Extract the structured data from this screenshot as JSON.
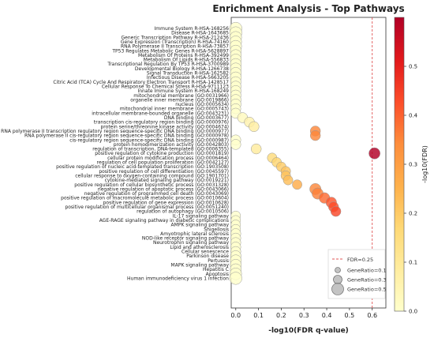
{
  "chart_data": {
    "type": "scatter",
    "title": "Enrichment Analysis - Top Pathways",
    "xlabel": "-log10(FDR q-value)",
    "xlim": [
      -0.02,
      0.66
    ],
    "xticks": [
      "0.0",
      "0.1",
      "0.2",
      "0.3",
      "0.4",
      "0.5",
      "0.6"
    ],
    "reference_line": {
      "x": 0.6,
      "label": "FDR=0.25",
      "color": "#e05555"
    },
    "colorbar": {
      "label": "-log10(FDR)",
      "range": [
        0,
        0.6
      ],
      "ticks": [
        "0.0",
        "0.1",
        "0.2",
        "0.3",
        "0.4",
        "0.5"
      ],
      "colors": [
        "#ffffcc",
        "#ffeda0",
        "#fed976",
        "#feb24c",
        "#fd8d3c",
        "#fc4e2a",
        "#e31a1c",
        "#b10026"
      ]
    },
    "size_legend": [
      {
        "label": "GeneRatio=0.1",
        "value": 0.1
      },
      {
        "label": "GeneRatio=0.3",
        "value": 0.3
      },
      {
        "label": "GeneRatio=0.5",
        "value": 0.5
      }
    ],
    "points": [
      {
        "term": "Immune System R-HSA-168256",
        "x": 0.0,
        "size": 0.55
      },
      {
        "term": "Disease R-HSA-1643685",
        "x": 0.0,
        "size": 0.55
      },
      {
        "term": "Generic Transcription Pathway R-HSA-212436",
        "x": 0.0,
        "size": 0.5
      },
      {
        "term": "Gene Expression (Transcription) R-HSA-74160",
        "x": 0.0,
        "size": 0.5
      },
      {
        "term": "RNA Polymerase II Transcription R-HSA-73857",
        "x": 0.0,
        "size": 0.5
      },
      {
        "term": "TP53 Regulates Metabolic Genes R-HSA-5628897",
        "x": 0.0,
        "size": 0.45
      },
      {
        "term": "Metabolism Of Proteins R-HSA-392499",
        "x": 0.0,
        "size": 0.45
      },
      {
        "term": "Metabolism Of Lipids R-HSA-556833",
        "x": 0.0,
        "size": 0.45
      },
      {
        "term": "Transcriptional Regulation By TP53 R-HSA-3700989",
        "x": 0.0,
        "size": 0.45
      },
      {
        "term": "Developmental Biology R-HSA-1266738",
        "x": 0.0,
        "size": 0.45
      },
      {
        "term": "Signal Transduction R-HSA-162582",
        "x": 0.0,
        "size": 0.45
      },
      {
        "term": "Infectious Disease R-HSA-5663205",
        "x": 0.0,
        "size": 0.45
      },
      {
        "term": "Citric Acid (TCA) Cycle And Respiratory Electron Transport R-HSA-1428517",
        "x": 0.0,
        "size": 0.4
      },
      {
        "term": "Cellular Response To Chemical Stress R-HSA-9711123",
        "x": 0.0,
        "size": 0.4
      },
      {
        "term": "Innate Immune System R-HSA-168249",
        "x": 0.0,
        "size": 0.4
      },
      {
        "term": "mitochondrial membrane (GO:0031966)",
        "x": 0.0,
        "size": 0.4
      },
      {
        "term": "organelle inner membrane (GO:0019866)",
        "x": 0.0,
        "size": 0.4
      },
      {
        "term": "nucleus (GO:0005634)",
        "x": 0.0,
        "size": 0.4
      },
      {
        "term": "mitochondrial inner membrane (GO:0005743)",
        "x": 0.0,
        "size": 0.35
      },
      {
        "term": "intracellular membrane-bounded organelle (GO:0043231)",
        "x": 0.0,
        "size": 0.35
      },
      {
        "term": "DNA binding (GO:0003677)",
        "x": 0.03,
        "size": 0.35
      },
      {
        "term": "transcription cis-regulatory region binding (GO:0000976)",
        "x": 0.06,
        "size": 0.35
      },
      {
        "term": "protein serine/threonine kinase activity (GO:0004674)",
        "x": 0.08,
        "size": 0.35
      },
      {
        "term": "RNA polymerase II transcription regulatory region sequence-specific DNA binding (GO:0000977)",
        "x": 0.35,
        "size": 0.35
      },
      {
        "term": "RNA polymerase II cis-regulatory region sequence-specific DNA binding (GO:0000978)",
        "x": 0.35,
        "size": 0.35
      },
      {
        "term": "cis-regulatory region sequence-specific DNA binding (GO:0000987)",
        "x": 0.0,
        "size": 0.35
      },
      {
        "term": "protein homodimerization activity (GO:0042803)",
        "x": 0.0,
        "size": 0.35
      },
      {
        "term": "regulation of transcription, DNA-templated (GO:0006355)",
        "x": 0.09,
        "size": 0.35
      },
      {
        "term": "positive regulation of cytokine production (GO:0001819)",
        "x": 0.61,
        "size": 0.45
      },
      {
        "term": "cellular protein modification process (GO:0006464)",
        "x": 0.16,
        "size": 0.3
      },
      {
        "term": "regulation of cell population proliferation (GO:0042127)",
        "x": 0.18,
        "size": 0.3
      },
      {
        "term": "positive regulation of nucleic acid-templated transcription (GO:1903508)",
        "x": 0.2,
        "size": 0.3
      },
      {
        "term": "positive regulation of cell differentiation (GO:0045597)",
        "x": 0.22,
        "size": 0.3
      },
      {
        "term": "cellular response to oxygen-containing compound (GO:1901701)",
        "x": 0.22,
        "size": 0.3
      },
      {
        "term": "cytokine-mediated signaling pathway (GO:0019221)",
        "x": 0.23,
        "size": 0.3
      },
      {
        "term": "positive regulation of cellular biosynthetic process (GO:0031328)",
        "x": 0.27,
        "size": 0.3
      },
      {
        "term": "negative regulation of apoptotic process (GO:0043066)",
        "x": 0.35,
        "size": 0.45
      },
      {
        "term": "negative regulation of programmed cell death (GO:0043069)",
        "x": 0.36,
        "size": 0.45
      },
      {
        "term": "positive regulation of macromolecule metabolic process (GO:0010604)",
        "x": 0.39,
        "size": 0.4
      },
      {
        "term": "positive regulation of gene expression (GO:0010628)",
        "x": 0.42,
        "size": 0.4
      },
      {
        "term": "positive regulation of multicellular organismal process (GO:0051240)",
        "x": 0.43,
        "size": 0.35
      },
      {
        "term": "regulation of autophagy (GO:0010506)",
        "x": 0.44,
        "size": 0.35
      },
      {
        "term": "IL-17 signaling pathway",
        "x": 0.0,
        "size": 0.3
      },
      {
        "term": "AGE-RAGE signaling pathway in diabetic complications",
        "x": 0.0,
        "size": 0.3
      },
      {
        "term": "AMPK signaling pathway",
        "x": 0.0,
        "size": 0.3
      },
      {
        "term": "Shigellosis",
        "x": 0.0,
        "size": 0.3
      },
      {
        "term": "Amyotrophic lateral sclerosis",
        "x": 0.0,
        "size": 0.35
      },
      {
        "term": "NOD-like receptor signaling pathway",
        "x": 0.0,
        "size": 0.35
      },
      {
        "term": "Neurotrophin signaling pathway",
        "x": 0.0,
        "size": 0.35
      },
      {
        "term": "Lipid and atherosclerosis",
        "x": 0.0,
        "size": 0.35
      },
      {
        "term": "Cellular senescence",
        "x": 0.0,
        "size": 0.35
      },
      {
        "term": "Parkinson disease",
        "x": 0.0,
        "size": 0.4
      },
      {
        "term": "Pertussis",
        "x": 0.0,
        "size": 0.45
      },
      {
        "term": "MAPK signaling pathway",
        "x": 0.0,
        "size": 0.45
      },
      {
        "term": "Hepatitis C",
        "x": 0.0,
        "size": 0.45
      },
      {
        "term": "Apoptosis",
        "x": 0.0,
        "size": 0.5
      },
      {
        "term": "Human immunodeficiency virus 1 infection",
        "x": 0.0,
        "size": 0.55
      }
    ]
  }
}
